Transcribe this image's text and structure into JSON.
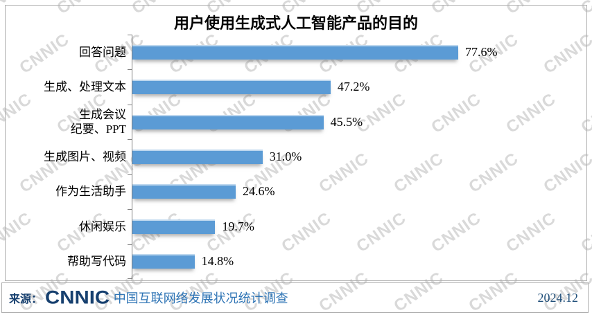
{
  "chart_data": {
    "type": "bar",
    "orientation": "horizontal",
    "title": "用户使用生成式人工智能产品的目的",
    "categories": [
      "回答问题",
      "生成、处理文本",
      "生成会议\n纪要、PPT",
      "生成图片、视频",
      "作为生活助手",
      "休闲娱乐",
      "帮助写代码"
    ],
    "values": [
      77.6,
      47.2,
      45.5,
      31.0,
      24.6,
      19.7,
      14.8
    ],
    "value_labels": [
      "77.6%",
      "47.2%",
      "45.5%",
      "31.0%",
      "24.6%",
      "19.7%",
      "14.8%"
    ],
    "xlim": [
      0,
      85
    ],
    "grid": false,
    "legend": false,
    "bar_color": "#5B9BD5",
    "bar_highlight_color": "#BDD7EE",
    "axis_color": "#7F7F7F",
    "title_color": "#000000",
    "label_color": "#000000"
  },
  "watermark": {
    "text": "CNNIC",
    "color": "#D9D9D9"
  },
  "footer": {
    "source_label": "来源：",
    "logo_text": "CNNIC",
    "survey_text": "中国互联网络发展状况统计调查",
    "date": "2024.12",
    "logo_color": "#17406F",
    "source_color": "#17406F",
    "survey_color": "#2E74B5",
    "date_color": "#1F4E79"
  }
}
